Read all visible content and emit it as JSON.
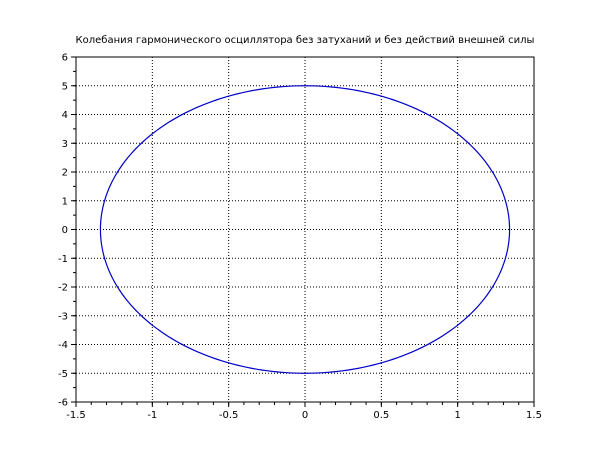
{
  "chart_data": {
    "type": "line",
    "title": "Колебания гармонического осциллятора без затуханий и без действий внешней силы",
    "xlabel": "",
    "ylabel": "",
    "xlim": [
      -1.5,
      1.5
    ],
    "ylim": [
      -6,
      6
    ],
    "x_ticks": [
      "-1.5",
      "-1",
      "-0.5",
      "0",
      "0.5",
      "1",
      "1.5"
    ],
    "y_ticks": [
      "-6",
      "-5",
      "-4",
      "-3",
      "-2",
      "-1",
      "0",
      "1",
      "2",
      "3",
      "4",
      "5",
      "6"
    ],
    "grid": true,
    "series": [
      {
        "color": "#0000c8",
        "shape": "ellipse",
        "center": [
          0,
          0
        ],
        "x_semi_axis": 1.34,
        "y_semi_axis": 5.0
      }
    ]
  }
}
